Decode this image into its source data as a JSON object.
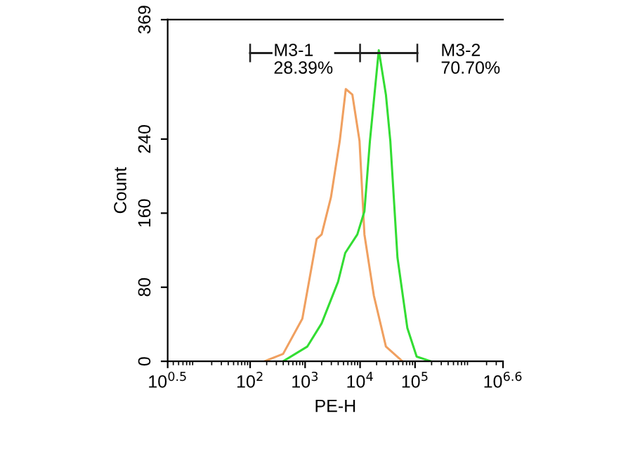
{
  "chart_data": {
    "type": "line",
    "xlabel": "PE-H",
    "ylabel": "Count",
    "log": "x",
    "xlim": [
      3.162,
      3981000
    ],
    "xticks": [
      {
        "value": 3.162,
        "label": "10$^{0.5}$"
      },
      {
        "value": 100,
        "label": "10$^{2}$"
      },
      {
        "value": 1000,
        "label": "10$^{3}$"
      },
      {
        "value": 10000,
        "label": "10$^{4}$"
      },
      {
        "value": 100000,
        "label": "10$^{5}$"
      },
      {
        "value": 3981000,
        "label": "10$^{6.6}$"
      }
    ],
    "ylim": [
      0,
      369
    ],
    "yticks": [
      0,
      80,
      160,
      240,
      369
    ],
    "marker": "none",
    "line_style": "solid",
    "series": [
      {
        "color": "#f0a060",
        "x": [
          182,
          398,
          891,
          1620,
          2000,
          2950,
          4270,
          5500,
          7240,
          9770,
          12000,
          17800,
          29500,
          58900
        ],
        "values": [
          0,
          8,
          46,
          132,
          137,
          177,
          238,
          294,
          288,
          238,
          137,
          71,
          16,
          0
        ]
      },
      {
        "color": "#33dd33",
        "x": [
          398,
          1100,
          2000,
          3980,
          5370,
          8910,
          12000,
          15100,
          21900,
          29500,
          35500,
          47900,
          72400,
          107000,
          195000
        ],
        "values": [
          0,
          16,
          41,
          86,
          117,
          137,
          162,
          238,
          336,
          288,
          238,
          112,
          36,
          5,
          0
        ]
      },
      {
        "color": "#222222",
        "x": [
          100,
          10000,
          110000
        ],
        "values": [
          333,
          333,
          333
        ],
        "errors": [
          10,
          10,
          10
        ]
      }
    ],
    "annotations": [
      {
        "text": "M3-1\n28.39%",
        "x": 100,
        "y": 333
      },
      {
        "text": "M3-2\n70.70%",
        "x": 110000,
        "y": 333
      }
    ]
  }
}
